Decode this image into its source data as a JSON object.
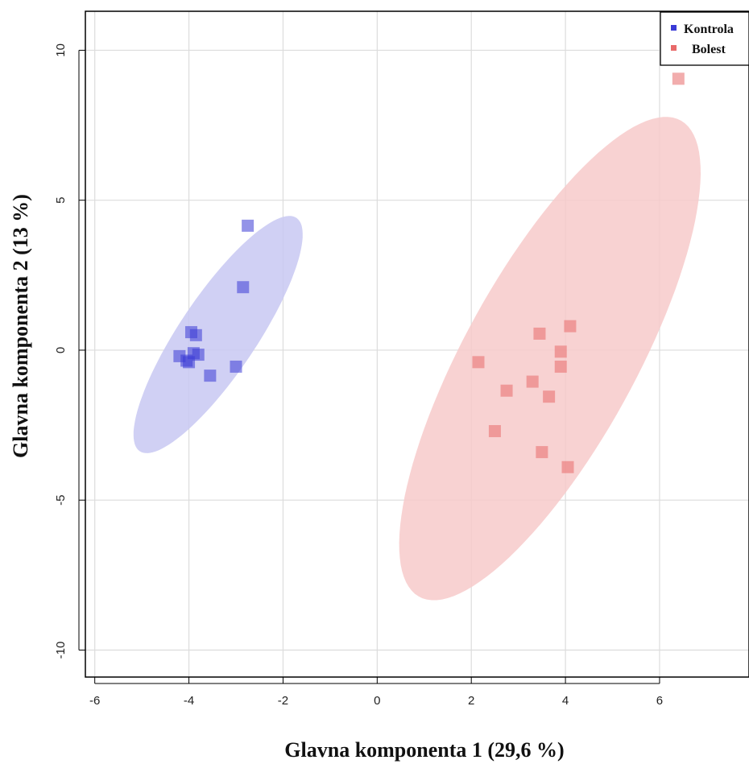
{
  "chart_data": {
    "type": "scatter",
    "xlabel": "Glavna komponenta 1 (29,6 %)",
    "ylabel": "Glavna komponenta 2 (13 %)",
    "xlim": [
      -6.2,
      7.9
    ],
    "ylim": [
      -10.9,
      11.3
    ],
    "xticks": [
      -6,
      -4,
      -2,
      0,
      2,
      4,
      6
    ],
    "yticks": [
      -10,
      -5,
      0,
      5,
      10
    ],
    "grid": true,
    "legend_position": "top-right",
    "series": [
      {
        "name": "Kontrola",
        "color": "#3a3ad6",
        "ellipse_color": "#c8c8f2",
        "points": [
          {
            "x": -2.75,
            "y": 4.15
          },
          {
            "x": -2.85,
            "y": 2.1
          },
          {
            "x": -3.95,
            "y": 0.6
          },
          {
            "x": -3.85,
            "y": 0.5
          },
          {
            "x": -4.2,
            "y": -0.2
          },
          {
            "x": -3.9,
            "y": -0.1
          },
          {
            "x": -3.8,
            "y": -0.15
          },
          {
            "x": -4.05,
            "y": -0.35
          },
          {
            "x": -4.0,
            "y": -0.4
          },
          {
            "x": -3.55,
            "y": -0.85
          },
          {
            "x": -3.0,
            "y": -0.55
          }
        ],
        "ellipse": {
          "cx": -3.38,
          "cy": 0.52,
          "rx": 4.25,
          "ry": 0.9,
          "angle_deg": 68
        }
      },
      {
        "name": "Bolest",
        "color": "#e86a6a",
        "ellipse_color": "#f7caca",
        "points": [
          {
            "x": 6.4,
            "y": 9.05
          },
          {
            "x": 4.1,
            "y": 0.8
          },
          {
            "x": 3.45,
            "y": 0.55
          },
          {
            "x": 3.9,
            "y": -0.05
          },
          {
            "x": 2.15,
            "y": -0.4
          },
          {
            "x": 3.9,
            "y": -0.55
          },
          {
            "x": 3.3,
            "y": -1.05
          },
          {
            "x": 2.75,
            "y": -1.35
          },
          {
            "x": 3.65,
            "y": -1.55
          },
          {
            "x": 2.5,
            "y": -2.7
          },
          {
            "x": 3.5,
            "y": -3.4
          },
          {
            "x": 4.05,
            "y": -3.9
          }
        ],
        "ellipse": {
          "cx": 3.67,
          "cy": -0.28,
          "rx": 8.45,
          "ry": 1.95,
          "angle_deg": 72
        }
      }
    ]
  }
}
